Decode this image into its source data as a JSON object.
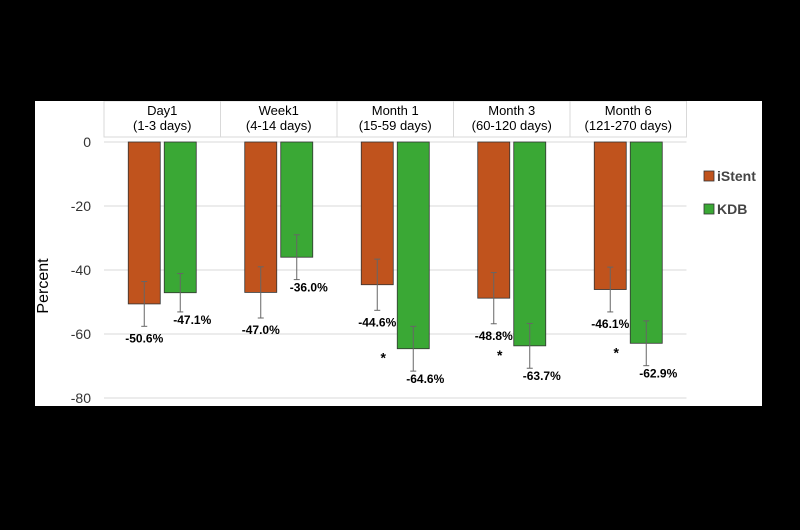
{
  "chart_data": {
    "type": "bar",
    "categories": [
      [
        "Day1",
        "(1-3 days)"
      ],
      [
        "Week1",
        "(4-14 days)"
      ],
      [
        "Month 1",
        "(15-59 days)"
      ],
      [
        "Month 3",
        "(60-120 days)"
      ],
      [
        "Month 6",
        "(121-270 days)"
      ]
    ],
    "series": [
      {
        "name": "iStent",
        "color": "#c0531d",
        "values": [
          -50.6,
          -47.0,
          -44.6,
          -48.8,
          -46.1
        ],
        "labels": [
          "-50.6%",
          "-47.0%",
          "-44.6%",
          "-48.8%",
          "-46.1%"
        ],
        "error": [
          7,
          8,
          8,
          8,
          7
        ]
      },
      {
        "name": "KDB",
        "color": "#3aa835",
        "values": [
          -47.1,
          -36.0,
          -64.6,
          -63.7,
          -62.9
        ],
        "labels": [
          "-47.1%",
          "-36.0%",
          "-64.6%",
          "-63.7%",
          "-62.9%"
        ],
        "error": [
          6,
          7,
          7,
          7,
          7
        ]
      }
    ],
    "significance": [
      "",
      "",
      "*",
      "*",
      "*"
    ],
    "ylabel": "Percent",
    "ylim": [
      -80,
      0
    ],
    "yticks": [
      0,
      -20,
      -40,
      -60,
      -80
    ],
    "grid": true,
    "legend_position": "right"
  }
}
